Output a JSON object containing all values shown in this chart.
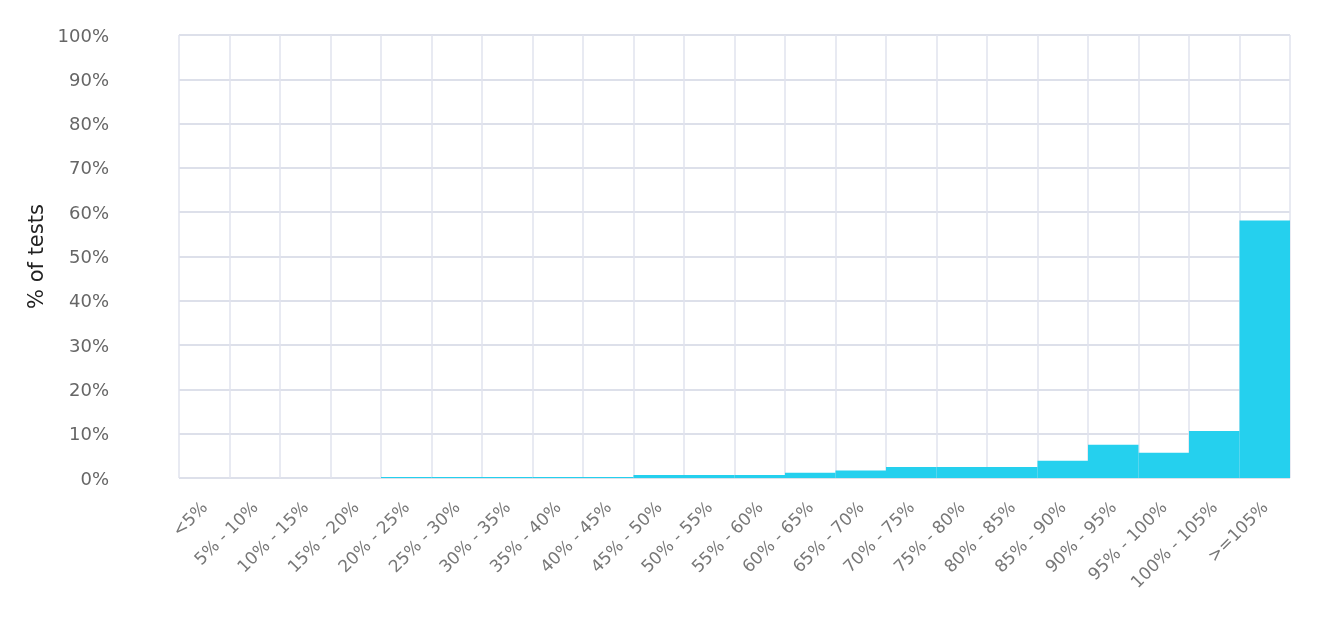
{
  "chart_data": {
    "type": "bar",
    "ylabel": "% of tests",
    "categories": [
      "<5%",
      "5% - 10%",
      "10% - 15%",
      "15% - 20%",
      "20% - 25%",
      "25% - 30%",
      "30% - 35%",
      "35% - 40%",
      "40% - 45%",
      "45% - 50%",
      "50% - 55%",
      "55% - 60%",
      "60% - 65%",
      "65% - 70%",
      "70% - 75%",
      "75% - 80%",
      "80% - 85%",
      "85% - 90%",
      "90% - 95%",
      "95% - 100%",
      "100% - 105%",
      ">=105%"
    ],
    "values": [
      0,
      0,
      0,
      0,
      0.2,
      0.2,
      0.2,
      0.2,
      0.2,
      0.7,
      0.7,
      0.7,
      1.2,
      1.7,
      2.5,
      2.5,
      2.5,
      3.9,
      7.5,
      5.7,
      10.6,
      58.1
    ],
    "color": "#25d0ee",
    "ylim": [
      0,
      100
    ],
    "yticks": [
      {
        "value": 0,
        "label": "0%"
      },
      {
        "value": 10,
        "label": "10%"
      },
      {
        "value": 20,
        "label": "20%"
      },
      {
        "value": 30,
        "label": "30%"
      },
      {
        "value": 40,
        "label": "40%"
      },
      {
        "value": 50,
        "label": "50%"
      },
      {
        "value": 60,
        "label": "60%"
      },
      {
        "value": 70,
        "label": "70%"
      },
      {
        "value": 80,
        "label": "80%"
      },
      {
        "value": 90,
        "label": "90%"
      },
      {
        "value": 100,
        "label": "100%"
      }
    ],
    "grid": true
  }
}
